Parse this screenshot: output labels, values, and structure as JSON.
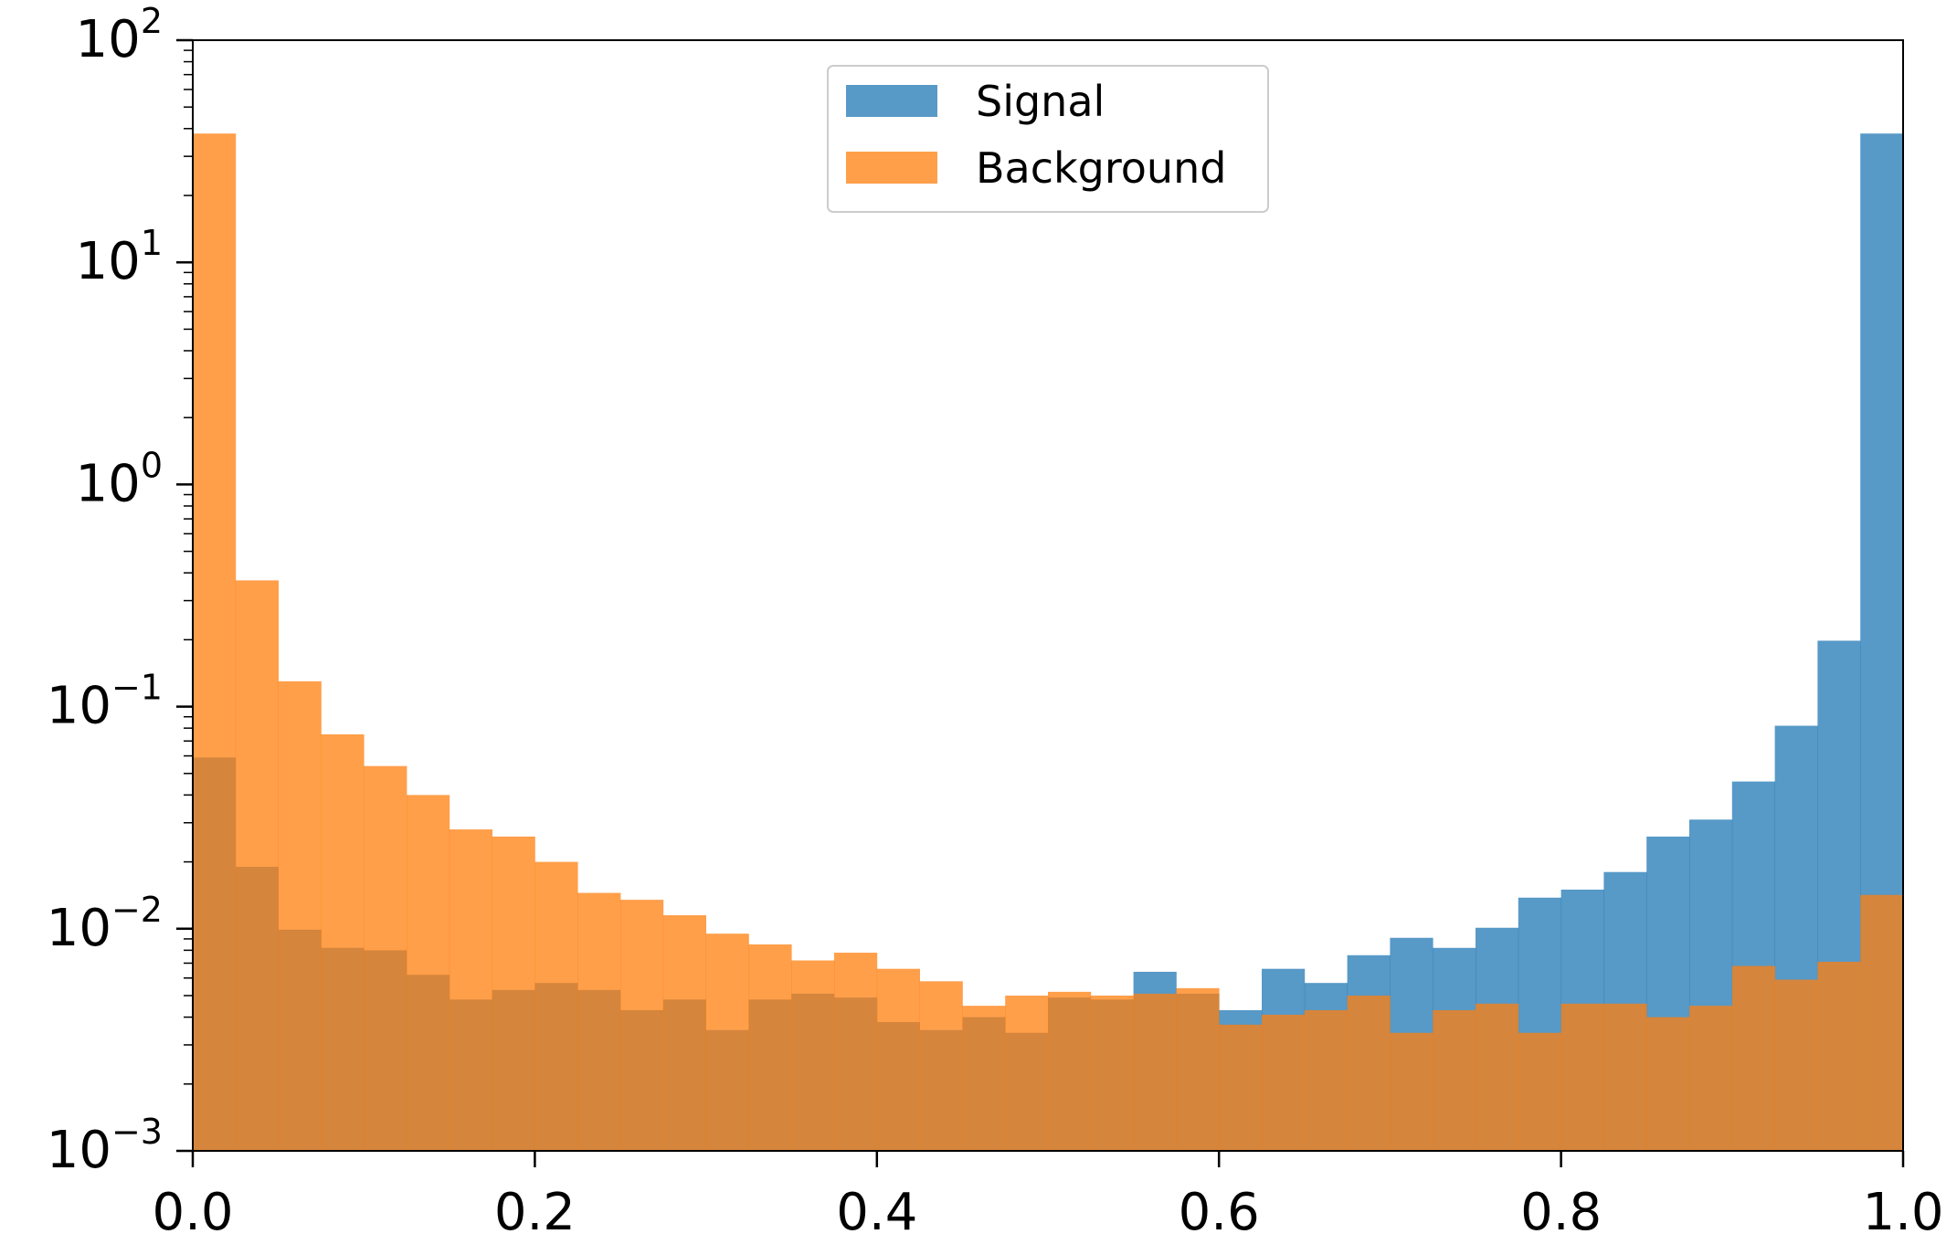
{
  "chart_data": {
    "type": "bar",
    "subtype": "histogram",
    "title": "",
    "xlabel": "",
    "ylabel": "",
    "xlim": [
      0.0,
      1.0
    ],
    "ylim": [
      0.001,
      100
    ],
    "yscale": "log",
    "grid": false,
    "legend_position": "upper-center",
    "bins": 40,
    "x_ticks": [
      {
        "value": 0.0,
        "label": "0.0"
      },
      {
        "value": 0.2,
        "label": "0.2"
      },
      {
        "value": 0.4,
        "label": "0.4"
      },
      {
        "value": 0.6,
        "label": "0.6"
      },
      {
        "value": 0.8,
        "label": "0.8"
      },
      {
        "value": 1.0,
        "label": "1.0"
      }
    ],
    "y_ticks": [
      {
        "value": 100,
        "base": "10",
        "exp": "2"
      },
      {
        "value": 10,
        "base": "10",
        "exp": "1"
      },
      {
        "value": 1,
        "base": "10",
        "exp": "0"
      },
      {
        "value": 0.1,
        "base": "10",
        "exp": "−1"
      },
      {
        "value": 0.01,
        "base": "10",
        "exp": "−2"
      },
      {
        "value": 0.001,
        "base": "10",
        "exp": "−3"
      }
    ],
    "series": [
      {
        "name": "Signal",
        "color": "#1f77b4",
        "alpha": 0.75,
        "values": [
          0.059,
          0.019,
          0.0099,
          0.0082,
          0.008,
          0.0062,
          0.0048,
          0.0053,
          0.0057,
          0.0053,
          0.0043,
          0.0048,
          0.0035,
          0.0048,
          0.0051,
          0.0049,
          0.0038,
          0.0035,
          0.004,
          0.0034,
          0.0049,
          0.0048,
          0.0064,
          0.0051,
          0.0043,
          0.0066,
          0.0057,
          0.0076,
          0.0091,
          0.0082,
          0.0101,
          0.0138,
          0.015,
          0.018,
          0.026,
          0.031,
          0.046,
          0.082,
          0.198,
          38
        ]
      },
      {
        "name": "Background",
        "color": "#ff7f0e",
        "alpha": 0.75,
        "values": [
          38,
          0.37,
          0.13,
          0.075,
          0.054,
          0.04,
          0.028,
          0.026,
          0.02,
          0.0145,
          0.0135,
          0.0115,
          0.0095,
          0.0085,
          0.0072,
          0.0078,
          0.0066,
          0.0058,
          0.0045,
          0.005,
          0.0052,
          0.005,
          0.0051,
          0.0054,
          0.0037,
          0.0041,
          0.0043,
          0.005,
          0.0034,
          0.0043,
          0.0046,
          0.0034,
          0.0046,
          0.0046,
          0.004,
          0.0045,
          0.0068,
          0.0059,
          0.0071,
          0.0142
        ]
      }
    ]
  }
}
